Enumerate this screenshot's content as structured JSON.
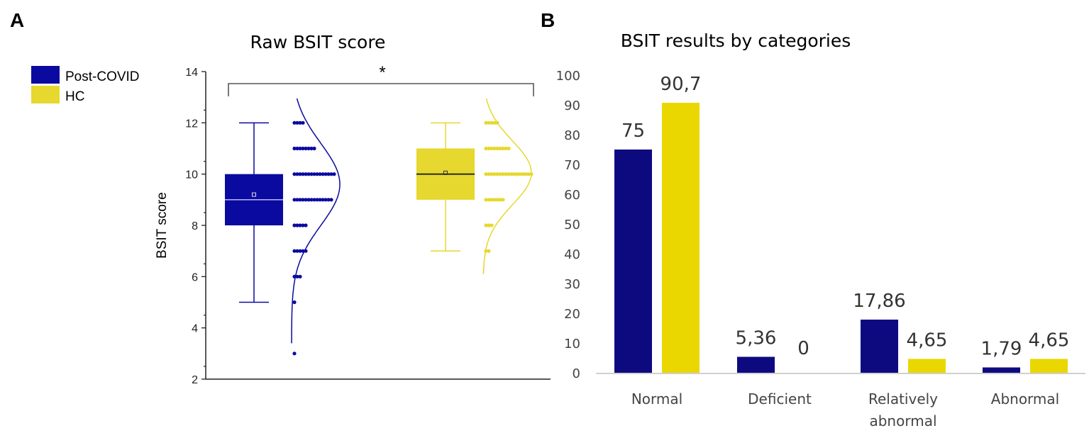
{
  "colors": {
    "post_covid": "#0a0aa0",
    "hc": "#e6d82e",
    "b_blue": "#0d0a80",
    "b_yellow": "#ead700"
  },
  "chart_data": [
    {
      "panel": "A",
      "type": "box",
      "title": "Raw BSIT score",
      "ylabel": "BSIT score",
      "ylim": [
        2,
        14
      ],
      "yticks": [
        "2",
        "4",
        "6",
        "8",
        "10",
        "12",
        "14"
      ],
      "legend": [
        "Post-COVID",
        "HC"
      ],
      "legend_position": "top-left",
      "significance": "*",
      "groups": [
        {
          "name": "Post-COVID",
          "min": 5,
          "q1": 8,
          "median": 9,
          "q3": 10,
          "max": 12,
          "mean": 9.2,
          "points": [
            {
              "y": 12,
              "n": 4
            },
            {
              "y": 11,
              "n": 8
            },
            {
              "y": 10,
              "n": 15
            },
            {
              "y": 9,
              "n": 14
            },
            {
              "y": 8,
              "n": 5
            },
            {
              "y": 7,
              "n": 5
            },
            {
              "y": 6,
              "n": 3
            },
            {
              "y": 5,
              "n": 1
            },
            {
              "y": 3,
              "n": 1
            }
          ],
          "curve_mean": 9.6,
          "curve_sd": 1.6
        },
        {
          "name": "HC",
          "min": 7,
          "q1": 9,
          "median": 10,
          "q3": 11,
          "max": 12,
          "mean": 10.05,
          "points": [
            {
              "y": 12,
              "n": 5
            },
            {
              "y": 11,
              "n": 9
            },
            {
              "y": 10,
              "n": 17
            },
            {
              "y": 9,
              "n": 7
            },
            {
              "y": 8,
              "n": 3
            },
            {
              "y": 7,
              "n": 2
            }
          ],
          "curve_mean": 10.05,
          "curve_sd": 1.25
        }
      ]
    },
    {
      "panel": "B",
      "type": "bar",
      "title": "BSIT results by categories",
      "ylim": [
        0,
        100
      ],
      "yticks": [
        "0",
        "10",
        "20",
        "30",
        "40",
        "50",
        "60",
        "70",
        "80",
        "90",
        "100"
      ],
      "categories": [
        [
          "Normal"
        ],
        [
          "Deficient"
        ],
        [
          "Relatively",
          "abnormal"
        ],
        [
          "Abnormal"
        ]
      ],
      "series": [
        {
          "name": "Post-COVID",
          "values": [
            75,
            5.36,
            17.86,
            1.79
          ],
          "labels": [
            "75",
            "5,36",
            "17,86",
            "1,79"
          ]
        },
        {
          "name": "HC",
          "values": [
            90.7,
            0,
            4.65,
            4.65
          ],
          "labels": [
            "90,7",
            "0",
            "4,65",
            "4,65"
          ]
        }
      ]
    }
  ]
}
